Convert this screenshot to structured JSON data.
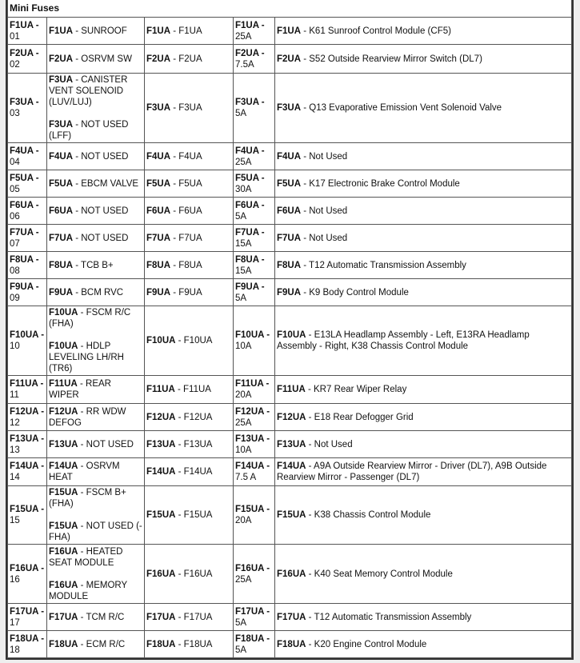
{
  "section_title": "Mini Fuses",
  "rows": [
    {
      "id": "F1UA -",
      "num": "01",
      "c2": [
        {
          "code": "F1UA",
          "text": " - SUNROOF"
        }
      ],
      "c3": {
        "code": "F1UA",
        "text": " - F1UA"
      },
      "amp_code": "F1UA -",
      "amp": "25A",
      "c5": {
        "code": "F1UA",
        "text": " - K61 Sunroof Control Module (CF5)"
      },
      "h": 34
    },
    {
      "id": "F2UA -",
      "num": "02",
      "c2": [
        {
          "code": "F2UA",
          "text": " - OSRVM SW"
        }
      ],
      "c3": {
        "code": "F2UA",
        "text": " - F2UA"
      },
      "amp_code": "F2UA -",
      "amp": "7.5A",
      "c5": {
        "code": "F2UA",
        "text": " - S52 Outside Rearview Mirror Switch (DL7)"
      },
      "h": 36
    },
    {
      "id": "F3UA -",
      "num": "03",
      "c2": [
        {
          "code": "F3UA",
          "text": " - CANISTER VENT SOLENOID (LUV/LUJ)"
        },
        {
          "code": "F3UA",
          "text": " - NOT USED (LFF)"
        }
      ],
      "c3": {
        "code": "F3UA",
        "text": " - F3UA"
      },
      "amp_code": "F3UA -",
      "amp": "5A",
      "c5": {
        "code": "F3UA",
        "text": " - Q13 Evaporative Emission Vent Solenoid Valve"
      },
      "h": 87
    },
    {
      "id": "F4UA -",
      "num": "04",
      "c2": [
        {
          "code": "F4UA",
          "text": " - NOT USED"
        }
      ],
      "c3": {
        "code": "F4UA",
        "text": " - F4UA"
      },
      "amp_code": "F4UA -",
      "amp": "25A",
      "c5": {
        "code": "F4UA",
        "text": " - Not Used"
      },
      "h": 34
    },
    {
      "id": "F5UA -",
      "num": "05",
      "c2": [
        {
          "code": "F5UA",
          "text": " - EBCM VALVE"
        }
      ],
      "c3": {
        "code": "F5UA",
        "text": " - F5UA"
      },
      "amp_code": "F5UA -",
      "amp": "30A",
      "c5": {
        "code": "F5UA",
        "text": " - K17 Electronic Brake Control Module"
      },
      "h": 34
    },
    {
      "id": "F6UA -",
      "num": "06",
      "c2": [
        {
          "code": "F6UA",
          "text": " - NOT USED"
        }
      ],
      "c3": {
        "code": "F6UA",
        "text": " - F6UA"
      },
      "amp_code": "F6UA -",
      "amp": "5A",
      "c5": {
        "code": "F6UA",
        "text": " - Not Used"
      },
      "h": 34
    },
    {
      "id": "F7UA -",
      "num": "07",
      "c2": [
        {
          "code": "F7UA",
          "text": " - NOT USED"
        }
      ],
      "c3": {
        "code": "F7UA",
        "text": " - F7UA"
      },
      "amp_code": "F7UA -",
      "amp": "15A",
      "c5": {
        "code": "F7UA",
        "text": " - Not Used"
      },
      "h": 34
    },
    {
      "id": "F8UA -",
      "num": "08",
      "c2": [
        {
          "code": "F8UA",
          "text": " - TCB B+"
        }
      ],
      "c3": {
        "code": "F8UA",
        "text": " - F8UA"
      },
      "amp_code": "F8UA -",
      "amp": "15A",
      "c5": {
        "code": "F8UA",
        "text": " - T12 Automatic Transmission Assembly"
      },
      "h": 34
    },
    {
      "id": "F9UA -",
      "num": "09",
      "c2": [
        {
          "code": "F9UA",
          "text": " - BCM RVC"
        }
      ],
      "c3": {
        "code": "F9UA",
        "text": " - F9UA"
      },
      "amp_code": "F9UA -",
      "amp": "5A",
      "c5": {
        "code": "F9UA",
        "text": " - K9 Body Control Module"
      },
      "h": 34
    },
    {
      "id": "F10UA -",
      "num": "10",
      "c2": [
        {
          "code": "F10UA",
          "text": " - FSCM R/C (FHA)"
        },
        {
          "code": "F10UA",
          "text": " - HDLP LEVELING LH/RH (TR6)"
        }
      ],
      "c3": {
        "code": "F10UA",
        "text": " - F10UA"
      },
      "amp_code": "F10UA -",
      "amp": "10A",
      "c5": {
        "code": "F10UA",
        "text": " - E13LA Headlamp Assembly - Left, E13RA Headlamp Assembly - Right, K38 Chassis Control Module"
      },
      "h": 86
    },
    {
      "id": "F11UA -",
      "num": "11",
      "c2": [
        {
          "code": "F11UA",
          "text": " - REAR WIPER"
        }
      ],
      "c3": {
        "code": "F11UA",
        "text": " - F11UA"
      },
      "amp_code": "F11UA -",
      "amp": "20A",
      "c5": {
        "code": "F11UA",
        "text": " - KR7 Rear Wiper Relay"
      },
      "h": 35
    },
    {
      "id": "F12UA -",
      "num": "12",
      "c2": [
        {
          "code": "F12UA",
          "text": " - RR WDW DEFOG"
        }
      ],
      "c3": {
        "code": "F12UA",
        "text": " - F12UA"
      },
      "amp_code": "F12UA -",
      "amp": "25A",
      "c5": {
        "code": "F12UA",
        "text": " - E18 Rear Defogger Grid"
      },
      "h": 34
    },
    {
      "id": "F13UA -",
      "num": "13",
      "c2": [
        {
          "code": "F13UA",
          "text": " - NOT USED"
        }
      ],
      "c3": {
        "code": "F13UA",
        "text": " - F13UA"
      },
      "amp_code": "F13UA -",
      "amp": "10A",
      "c5": {
        "code": "F13UA",
        "text": " - Not Used"
      },
      "h": 34
    },
    {
      "id": "F14UA -",
      "num": "14",
      "c2": [
        {
          "code": "F14UA",
          "text": " - OSRVM HEAT"
        }
      ],
      "c3": {
        "code": "F14UA",
        "text": " - F14UA"
      },
      "amp_code": "F14UA -",
      "amp": "7.5 A",
      "c5": {
        "code": "F14UA",
        "text": " - A9A Outside Rearview Mirror - Driver (DL7), A9B Outside Rearview Mirror - Passenger (DL7)"
      },
      "h": 35
    },
    {
      "id": "F15UA -",
      "num": "15",
      "c2": [
        {
          "code": "F15UA",
          "text": " - FSCM B+ (FHA)"
        },
        {
          "code": "F15UA",
          "text": " - NOT USED (-FHA)"
        }
      ],
      "c3": {
        "code": "F15UA",
        "text": " - F15UA"
      },
      "amp_code": "F15UA -",
      "amp": "20A",
      "c5": {
        "code": "F15UA",
        "text": " - K38 Chassis Control Module"
      },
      "h": 72
    },
    {
      "id": "F16UA -",
      "num": "16",
      "c2": [
        {
          "code": "F16UA",
          "text": " - HEATED SEAT MODULE"
        },
        {
          "code": "F16UA",
          "text": " - MEMORY MODULE"
        }
      ],
      "c3": {
        "code": "F16UA",
        "text": " - F16UA"
      },
      "amp_code": "F16UA -",
      "amp": "25A",
      "c5": {
        "code": "F16UA",
        "text": " - K40 Seat Memory Control Module"
      },
      "h": 74
    },
    {
      "id": "F17UA -",
      "num": "17",
      "c2": [
        {
          "code": "F17UA",
          "text": " - TCM R/C"
        }
      ],
      "c3": {
        "code": "F17UA",
        "text": " - F17UA"
      },
      "amp_code": "F17UA -",
      "amp": "5A",
      "c5": {
        "code": "F17UA",
        "text": " - T12 Automatic Transmission Assembly"
      },
      "h": 34
    },
    {
      "id": "F18UA -",
      "num": "18",
      "c2": [
        {
          "code": "F18UA",
          "text": " - ECM R/C"
        }
      ],
      "c3": {
        "code": "F18UA",
        "text": " - F18UA"
      },
      "amp_code": "F18UA -",
      "amp": "5A",
      "c5": {
        "code": "F18UA",
        "text": " - K20 Engine Control Module"
      },
      "h": 34
    }
  ]
}
